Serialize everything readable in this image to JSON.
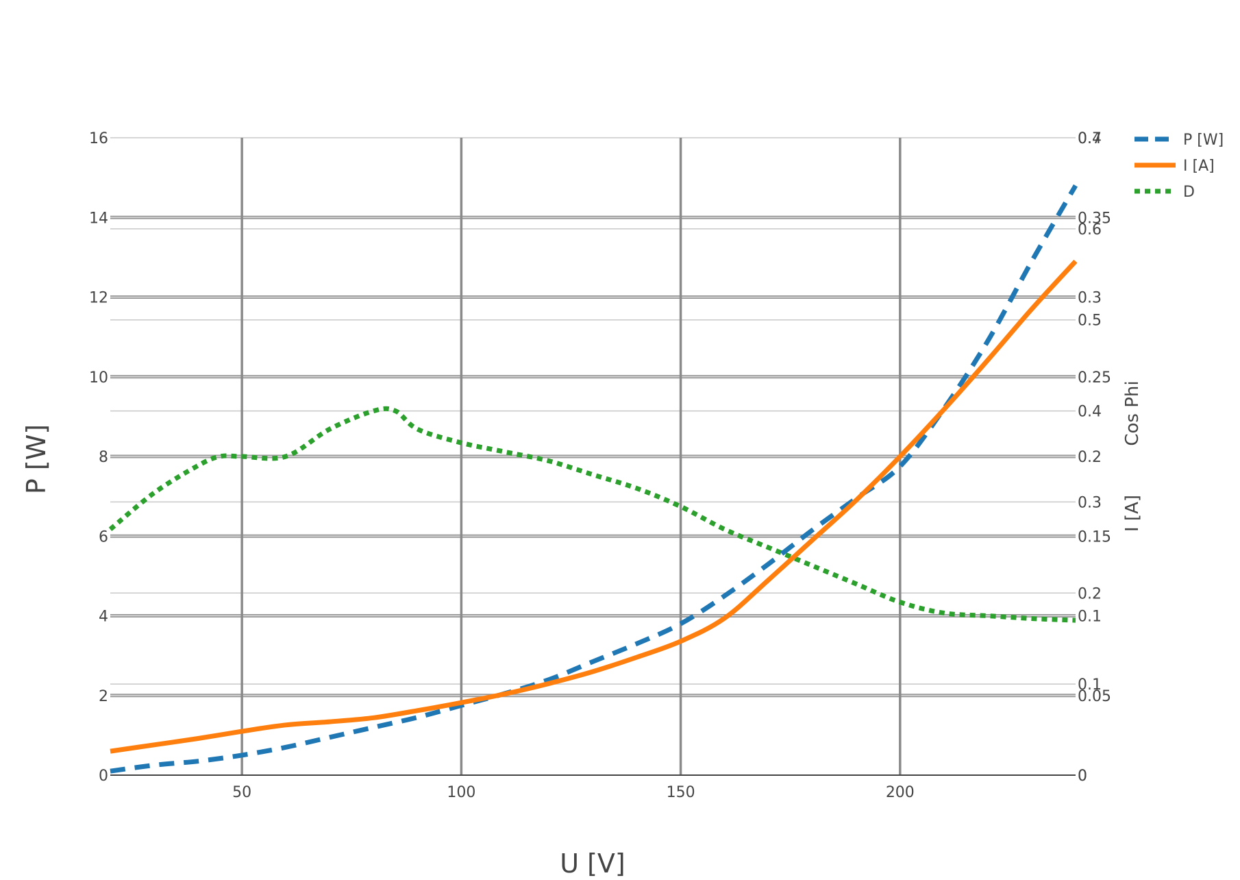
{
  "chart_data": {
    "type": "line",
    "xlabel": "U [V]",
    "xlim": [
      20,
      240
    ],
    "x_ticks": [
      50,
      100,
      150,
      200
    ],
    "x_tick_labels": [
      "50",
      "100",
      "150",
      "200"
    ],
    "grid": true,
    "legend_position": "top-right",
    "axes": {
      "y_left": {
        "label": "P [W]",
        "ylim": [
          0,
          16
        ],
        "ticks": [
          0,
          2,
          4,
          6,
          8,
          10,
          12,
          14,
          16
        ],
        "tick_labels": [
          "0",
          "2",
          "4",
          "6",
          "8",
          "10",
          "12",
          "14",
          "16"
        ]
      },
      "y_right_cos": {
        "label": "Cos Phi",
        "ylim": [
          0,
          0.7
        ],
        "ticks": [
          0,
          0.1,
          0.2,
          0.3,
          0.4,
          0.5,
          0.6,
          0.7
        ],
        "tick_labels": [
          "0",
          "0.1",
          "0.2",
          "0.3",
          "0.4",
          "0.5",
          "0.6",
          "0.7"
        ]
      },
      "y_right_i": {
        "label": "I [A]",
        "ylim": [
          0,
          0.4
        ],
        "ticks": [
          0,
          0.05,
          0.1,
          0.15,
          0.2,
          0.25,
          0.3,
          0.35,
          0.4
        ],
        "tick_labels": [
          "0",
          "0.05",
          "0.1",
          "0.15",
          "0.2",
          "0.25",
          "0.3",
          "0.35",
          "0.4"
        ]
      }
    },
    "series": [
      {
        "name": "P [W]",
        "axis": "y_left",
        "color": "#1f77b4",
        "dash": "dash",
        "x": [
          20,
          30,
          40,
          50,
          60,
          70,
          80,
          90,
          100,
          110,
          120,
          130,
          140,
          150,
          160,
          170,
          180,
          190,
          200,
          210,
          220,
          230,
          240
        ],
        "y": [
          0.1,
          0.25,
          0.35,
          0.5,
          0.7,
          0.95,
          1.2,
          1.45,
          1.75,
          2.05,
          2.4,
          2.85,
          3.3,
          3.8,
          4.5,
          5.3,
          6.15,
          6.95,
          7.75,
          9.2,
          10.9,
          12.9,
          14.8
        ]
      },
      {
        "name": "I [A]",
        "axis": "y_right_i",
        "color": "#ff7f0e",
        "dash": "solid",
        "x": [
          20,
          30,
          40,
          50,
          60,
          70,
          80,
          90,
          100,
          110,
          120,
          130,
          140,
          150,
          160,
          170,
          180,
          190,
          200,
          210,
          220,
          230,
          240
        ],
        "y": [
          0.015,
          0.019,
          0.023,
          0.0275,
          0.0315,
          0.0335,
          0.036,
          0.0405,
          0.0455,
          0.051,
          0.0575,
          0.065,
          0.074,
          0.084,
          0.0985,
          0.1225,
          0.1475,
          0.1725,
          0.2,
          0.2295,
          0.2605,
          0.2925,
          0.3225
        ]
      },
      {
        "name": "D",
        "axis": "y_right_cos",
        "color": "#2ca02c",
        "dash": "dot",
        "x": [
          20,
          30,
          40,
          45,
          50,
          60,
          70,
          80,
          85,
          90,
          100,
          110,
          120,
          130,
          140,
          150,
          160,
          170,
          180,
          190,
          200,
          210,
          220,
          230,
          240
        ],
        "y": [
          0.27,
          0.31,
          0.34,
          0.35,
          0.35,
          0.35,
          0.38,
          0.4,
          0.4,
          0.38,
          0.365,
          0.355,
          0.345,
          0.33,
          0.315,
          0.295,
          0.27,
          0.25,
          0.23,
          0.21,
          0.19,
          0.178,
          0.175,
          0.172,
          0.17
        ]
      }
    ]
  }
}
